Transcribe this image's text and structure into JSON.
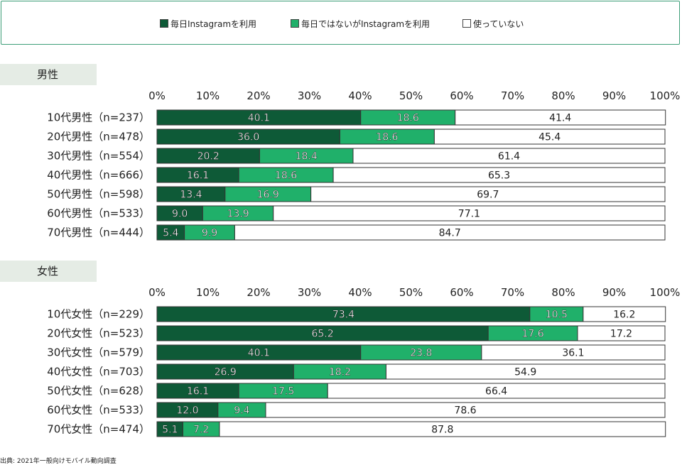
{
  "legend": [
    {
      "label": "毎日Instagramを利用",
      "color": "#0e5a37"
    },
    {
      "label": "毎日ではないがInstagramを利用",
      "color": "#20b06a"
    },
    {
      "label": "使っていない",
      "color": "#ffffff"
    }
  ],
  "sections": {
    "male": {
      "title": "男性"
    },
    "female": {
      "title": "女性"
    }
  },
  "source": "出典: 2021年一般向けモバイル動向調査",
  "chart_data": [
    {
      "type": "bar",
      "orientation": "horizontal",
      "stacked": true,
      "title": "男性",
      "xlim": [
        0,
        100
      ],
      "x_ticks": [
        "0%",
        "10%",
        "20%",
        "30%",
        "40%",
        "50%",
        "60%",
        "70%",
        "80%",
        "90%",
        "100%"
      ],
      "categories": [
        "10代男性（n=237）",
        "20代男性（n=478）",
        "30代男性（n=554）",
        "40代男性（n=666）",
        "50代男性（n=598）",
        "60代男性（n=533）",
        "70代男性（n=444）"
      ],
      "series": [
        {
          "name": "毎日Instagramを利用",
          "color": "#0e5a37",
          "values": [
            40.1,
            36.0,
            20.2,
            16.1,
            13.4,
            9.0,
            5.4
          ]
        },
        {
          "name": "毎日ではないがInstagramを利用",
          "color": "#20b06a",
          "values": [
            18.6,
            18.6,
            18.4,
            18.6,
            16.9,
            13.9,
            9.9
          ]
        },
        {
          "name": "使っていない",
          "color": "#ffffff",
          "values": [
            41.4,
            45.4,
            61.4,
            65.3,
            69.7,
            77.1,
            84.7
          ]
        }
      ]
    },
    {
      "type": "bar",
      "orientation": "horizontal",
      "stacked": true,
      "title": "女性",
      "xlim": [
        0,
        100
      ],
      "x_ticks": [
        "0%",
        "10%",
        "20%",
        "30%",
        "40%",
        "50%",
        "60%",
        "70%",
        "80%",
        "90%",
        "100%"
      ],
      "categories": [
        "10代女性（n=229）",
        "20代女性（n=523）",
        "30代女性（n=579）",
        "40代女性（n=703）",
        "50代女性（n=628）",
        "60代女性（n=533）",
        "70代女性（n=474）"
      ],
      "series": [
        {
          "name": "毎日Instagramを利用",
          "color": "#0e5a37",
          "values": [
            73.4,
            65.2,
            40.1,
            26.9,
            16.1,
            12.0,
            5.1
          ]
        },
        {
          "name": "毎日ではないがInstagramを利用",
          "color": "#20b06a",
          "values": [
            10.5,
            17.6,
            23.8,
            18.2,
            17.5,
            9.4,
            7.2
          ]
        },
        {
          "name": "使っていない",
          "color": "#ffffff",
          "values": [
            16.2,
            17.2,
            36.1,
            54.9,
            66.4,
            78.6,
            87.8
          ]
        }
      ]
    }
  ]
}
